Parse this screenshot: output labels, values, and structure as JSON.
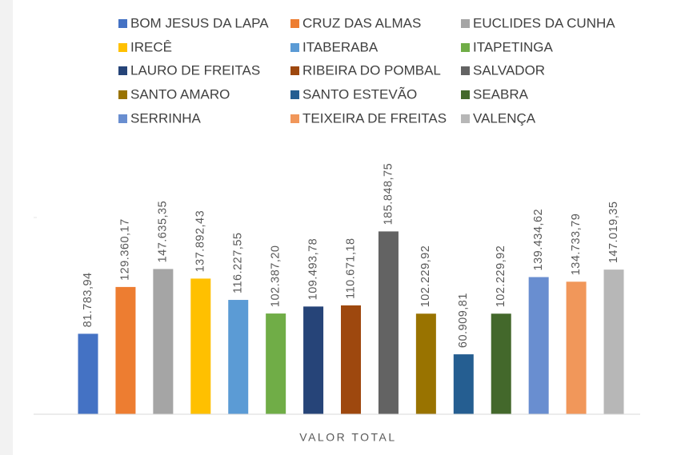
{
  "chart_data": {
    "type": "bar",
    "categories": [
      "VALOR TOTAL"
    ],
    "ylim": [
      0,
      200000
    ],
    "legend": "top",
    "series": [
      {
        "name": "BOM JESUS DA LAPA",
        "color": "#4472c4",
        "values": [
          81783.94
        ],
        "value_labels": [
          "81.783,94"
        ]
      },
      {
        "name": "CRUZ DAS ALMAS",
        "color": "#ed7d31",
        "values": [
          129360.17
        ],
        "value_labels": [
          "129.360,17"
        ]
      },
      {
        "name": "EUCLIDES DA CUNHA",
        "color": "#a5a5a5",
        "values": [
          147635.35
        ],
        "value_labels": [
          "147.635,35"
        ]
      },
      {
        "name": "IRECÊ",
        "color": "#ffc000",
        "values": [
          137892.43
        ],
        "value_labels": [
          "137.892,43"
        ]
      },
      {
        "name": "ITABERABA",
        "color": "#5b9bd5",
        "values": [
          116227.55
        ],
        "value_labels": [
          "116.227,55"
        ]
      },
      {
        "name": "ITAPETINGA",
        "color": "#70ad47",
        "values": [
          102387.2
        ],
        "value_labels": [
          "102.387,20"
        ]
      },
      {
        "name": "LAURO DE FREITAS",
        "color": "#264478",
        "values": [
          109493.78
        ],
        "value_labels": [
          "109.493,78"
        ]
      },
      {
        "name": "RIBEIRA DO POMBAL",
        "color": "#9e480e",
        "values": [
          110671.18
        ],
        "value_labels": [
          "110.671,18"
        ]
      },
      {
        "name": "SALVADOR",
        "color": "#636363",
        "values": [
          185848.75
        ],
        "value_labels": [
          "185.848,75"
        ]
      },
      {
        "name": "SANTO AMARO",
        "color": "#997300",
        "values": [
          102229.92
        ],
        "value_labels": [
          "102.229,92"
        ]
      },
      {
        "name": "SANTO ESTEVÃO",
        "color": "#255e91",
        "values": [
          60909.81
        ],
        "value_labels": [
          "60.909,81"
        ]
      },
      {
        "name": "SEABRA",
        "color": "#43682b",
        "values": [
          102229.92
        ],
        "value_labels": [
          "102.229,92"
        ]
      },
      {
        "name": "SERRINHA",
        "color": "#698ed0",
        "values": [
          139434.62
        ],
        "value_labels": [
          "139.434,62"
        ]
      },
      {
        "name": "TEIXEIRA DE FREITAS",
        "color": "#f1975a",
        "values": [
          134733.79
        ],
        "value_labels": [
          "134.733,79"
        ]
      },
      {
        "name": "VALENÇA",
        "color": "#b7b7b7",
        "values": [
          147019.35
        ],
        "value_labels": [
          "147.019,35"
        ]
      }
    ]
  }
}
